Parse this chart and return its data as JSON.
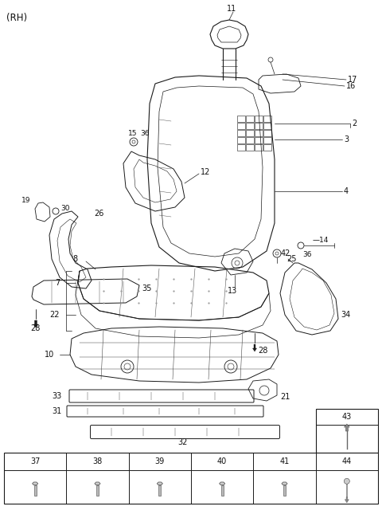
{
  "bg_color": "#ffffff",
  "line_color": "#1a1a1a",
  "label_color": "#111111",
  "rh_label": "(RH)",
  "figsize": [
    4.8,
    6.55
  ],
  "dpi": 100,
  "table": {
    "labels_row1": [
      "37",
      "38",
      "39",
      "40",
      "41",
      "44"
    ],
    "label_43": "43",
    "screw_cols": [
      0,
      1,
      2,
      3,
      4
    ],
    "pin_col": 5
  }
}
